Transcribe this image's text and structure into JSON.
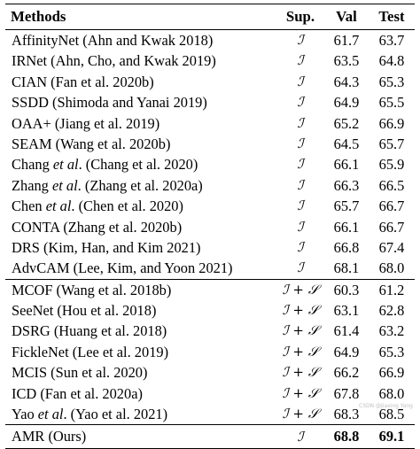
{
  "table": {
    "headers": {
      "method": "Methods",
      "sup": "Sup.",
      "val": "Val",
      "test": "Test"
    },
    "group1": [
      {
        "method": "AffinityNet (Ahn and Kwak 2018)",
        "sup": "ℐ",
        "val": "61.7",
        "test": "63.7"
      },
      {
        "method": "IRNet (Ahn, Cho, and Kwak 2019)",
        "sup": "ℐ",
        "val": "63.5",
        "test": "64.8"
      },
      {
        "method": "CIAN (Fan et al. 2020b)",
        "sup": "ℐ",
        "val": "64.3",
        "test": "65.3"
      },
      {
        "method": "SSDD (Shimoda and Yanai 2019)",
        "sup": "ℐ",
        "val": "64.9",
        "test": "65.5"
      },
      {
        "method": "OAA+ (Jiang et al. 2019)",
        "sup": "ℐ",
        "val": "65.2",
        "test": "66.9"
      },
      {
        "method": "SEAM (Wang et al. 2020b)",
        "sup": "ℐ",
        "val": "64.5",
        "test": "65.7"
      },
      {
        "method_pre": "Chang ",
        "method_em": "et al",
        "method_post": ". (Chang et al. 2020)",
        "sup": "ℐ",
        "val": "66.1",
        "test": "65.9"
      },
      {
        "method_pre": "Zhang ",
        "method_em": "et al",
        "method_post": ". (Zhang et al. 2020a)",
        "sup": "ℐ",
        "val": "66.3",
        "test": "66.5"
      },
      {
        "method_pre": "Chen ",
        "method_em": "et al",
        "method_post": ". (Chen et al. 2020)",
        "sup": "ℐ",
        "val": "65.7",
        "test": "66.7"
      },
      {
        "method": "CONTA (Zhang et al. 2020b)",
        "sup": "ℐ",
        "val": "66.1",
        "test": "66.7"
      },
      {
        "method": "DRS (Kim, Han, and Kim 2021)",
        "sup": "ℐ",
        "val": "66.8",
        "test": "67.4"
      },
      {
        "method": "AdvCAM (Lee, Kim, and Yoon 2021)",
        "sup": "ℐ",
        "val": "68.1",
        "test": "68.0"
      }
    ],
    "group2": [
      {
        "method": "MCOF (Wang et al. 2018b)",
        "sup": "ℐ + 𝒮",
        "val": "60.3",
        "test": "61.2"
      },
      {
        "method": "SeeNet (Hou et al. 2018)",
        "sup": "ℐ + 𝒮",
        "val": "63.1",
        "test": "62.8"
      },
      {
        "method": "DSRG (Huang et al. 2018)",
        "sup": "ℐ + 𝒮",
        "val": "61.4",
        "test": "63.2"
      },
      {
        "method": "FickleNet (Lee et al. 2019)",
        "sup": "ℐ + 𝒮",
        "val": "64.9",
        "test": "65.3"
      },
      {
        "method": "MCIS (Sun et al. 2020)",
        "sup": "ℐ + 𝒮",
        "val": "66.2",
        "test": "66.9"
      },
      {
        "method": "ICD (Fan et al. 2020a)",
        "sup": "ℐ + 𝒮",
        "val": "67.8",
        "test": "68.0"
      },
      {
        "method_pre": "Yao ",
        "method_em": "et al",
        "method_post": ". (Yao et al. 2021)",
        "sup": "ℐ + 𝒮",
        "val": "68.3",
        "test": "68.5"
      }
    ],
    "ours": {
      "method": "AMR (Ours)",
      "sup": "ℐ",
      "val": "68.8",
      "test": "69.1"
    }
  },
  "watermark": "CSDN @Jiaxing Yang"
}
